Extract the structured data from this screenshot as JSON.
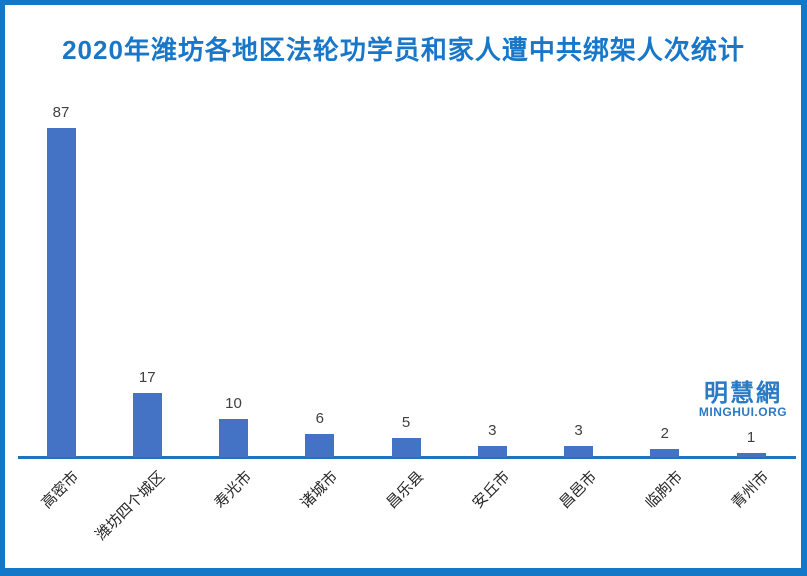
{
  "title": {
    "text": "2020年潍坊各地区法轮功学员和家人遭中共绑架人次统计",
    "color": "#1877C8"
  },
  "frame": {
    "border_color": "#1478C8"
  },
  "watermark": {
    "logo_cn": "明慧網",
    "logo_en": "MINGHUI.ORG",
    "color": "#2A7AC5"
  },
  "chart_data": {
    "type": "bar",
    "title": "2020年潍坊各地区法轮功学员和家人遭中共绑架人次统计",
    "categories": [
      "高密市",
      "潍坊四个城区",
      "寿光市",
      "诸城市",
      "昌乐县",
      "安丘市",
      "昌邑市",
      "临朐市",
      "青州市"
    ],
    "values": [
      87,
      17,
      10,
      6,
      5,
      3,
      3,
      2,
      1
    ],
    "xlabel": "",
    "ylabel": "",
    "ylim": [
      0,
      90
    ],
    "gridlines": false,
    "legend": false,
    "data_labels": true,
    "bar_color": "#4472C4",
    "axis_color": "#2273BE",
    "value_label_color": "#404040",
    "category_label_color": "#262626"
  }
}
